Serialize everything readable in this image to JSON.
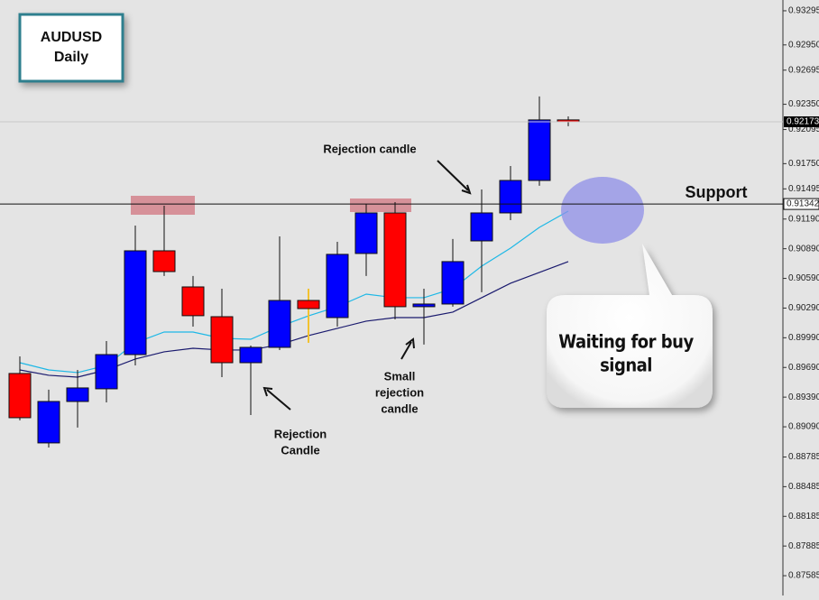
{
  "chart_data": {
    "type": "candlestick",
    "title": "AUDUSD",
    "subtitle": "Daily",
    "open": [
      0.89629,
      0.88927,
      0.89346,
      0.89474,
      0.8982,
      0.90869,
      0.90504,
      0.90203,
      0.89738,
      0.89893,
      0.90367,
      0.90194,
      0.90842,
      0.91252,
      0.90304,
      0.90331,
      0.90969,
      0.91252,
      0.9158,
      0.92192
    ],
    "high": [
      0.89802,
      0.89465,
      0.89665,
      0.89957,
      0.91124,
      0.91325,
      0.90614,
      0.90486,
      0.89911,
      0.91015,
      0.90486,
      0.9096,
      0.91343,
      0.91361,
      0.90486,
      0.90988,
      0.91489,
      0.91726,
      0.92429,
      0.92228
    ],
    "low": [
      0.89155,
      0.88881,
      0.89082,
      0.89337,
      0.89711,
      0.90614,
      0.90103,
      0.89592,
      0.89209,
      0.89866,
      0.89939,
      0.90103,
      0.90614,
      0.90176,
      0.89921,
      0.90304,
      0.9045,
      0.91179,
      0.91526,
      0.92128
    ],
    "close": [
      0.89182,
      0.89346,
      0.89483,
      0.8982,
      0.90869,
      0.90659,
      0.90213,
      0.89738,
      0.89893,
      0.90367,
      0.90285,
      0.90833,
      0.91252,
      0.90304,
      0.90331,
      0.9076,
      0.91252,
      0.9158,
      0.92192,
      0.92173
    ],
    "up_color": "#0000ff",
    "down_color": "#ff0000",
    "highlight_wick": {
      "index": 10,
      "color": "#f2c230"
    },
    "moving_averages": [
      {
        "color": "#1eb8e6",
        "values": [
          0.89738,
          0.89665,
          0.89638,
          0.89711,
          0.89939,
          0.90048,
          0.90048,
          0.89984,
          0.89975,
          0.90103,
          0.90212,
          0.90304,
          0.90431,
          0.90395,
          0.90395,
          0.90486,
          0.90714,
          0.90896,
          0.91106,
          0.9127
        ]
      },
      {
        "color": "#1a1a6e",
        "values": [
          0.89665,
          0.89611,
          0.89592,
          0.89665,
          0.89775,
          0.89848,
          0.89884,
          0.89866,
          0.89866,
          0.89921,
          0.90012,
          0.90085,
          0.90158,
          0.90194,
          0.90194,
          0.90249,
          0.90395,
          0.90541,
          0.9065,
          0.9076
        ]
      }
    ],
    "support": {
      "value": 0.91342,
      "label": "Support"
    },
    "last_price": 0.92173,
    "ylim": [
      0.87385,
      0.93404
    ],
    "yticks": [
      0.93295,
      {
        "value": 0.9295,
        "label": "0.92950"
      },
      0.92695,
      {
        "value": 0.9235,
        "label": "0.92350"
      },
      0.92095,
      {
        "value": 0.9175,
        "label": "0.91750"
      },
      0.91495,
      {
        "value": 0.9119,
        "label": "0.91190"
      },
      {
        "value": 0.9089,
        "label": "0.90890"
      },
      {
        "value": 0.9059,
        "label": "0.90590"
      },
      {
        "value": 0.9029,
        "label": "0.90290"
      },
      {
        "value": 0.8999,
        "label": "0.89990"
      },
      {
        "value": 0.8969,
        "label": "0.89690"
      },
      {
        "value": 0.8939,
        "label": "0.89390"
      },
      {
        "value": 0.8909,
        "label": "0.89090"
      },
      0.88785,
      0.88485,
      0.88185,
      0.87885,
      0.87585
    ],
    "annotations": [
      {
        "lines": [
          "Rejection candle"
        ]
      },
      {
        "lines": [
          "Rejection",
          "Candle"
        ]
      },
      {
        "lines": [
          "Small",
          "rejection",
          "candle"
        ]
      },
      {
        "lines": [
          "Waiting for buy",
          "signal"
        ]
      }
    ]
  }
}
